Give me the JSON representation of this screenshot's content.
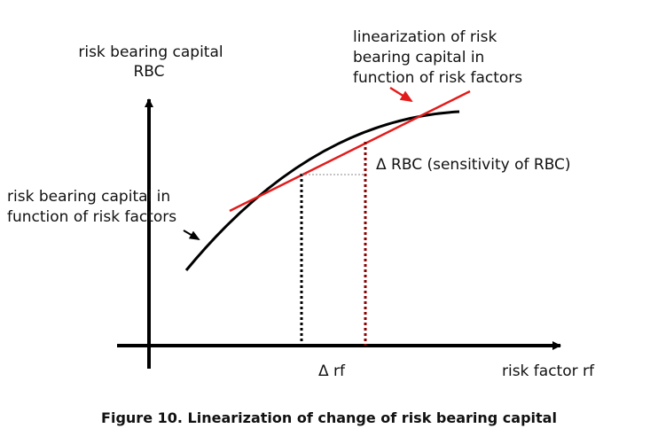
{
  "labels": {
    "y_axis_line1": "risk bearing capital",
    "y_axis_line2": "RBC",
    "x_axis": "risk factor rf",
    "curve_line1": "risk bearing capital in",
    "curve_line2": "function of risk factors",
    "linearization_line1": "linearization of risk",
    "linearization_line2": "bearing capital in",
    "linearization_line3": "function of risk factors",
    "delta_rbc": "Δ RBC (sensitivity of RBC)",
    "delta_rf": "Δ rf"
  },
  "caption": "Figure 10. Linearization of change of risk bearing capital",
  "colors": {
    "curve": "#000000",
    "tangent": "#e31b1b",
    "arrow_red": "#e31b1b",
    "right_dotted": "#8b0000",
    "left_dotted": "#000000",
    "horizontal_dotted": "#888888"
  }
}
